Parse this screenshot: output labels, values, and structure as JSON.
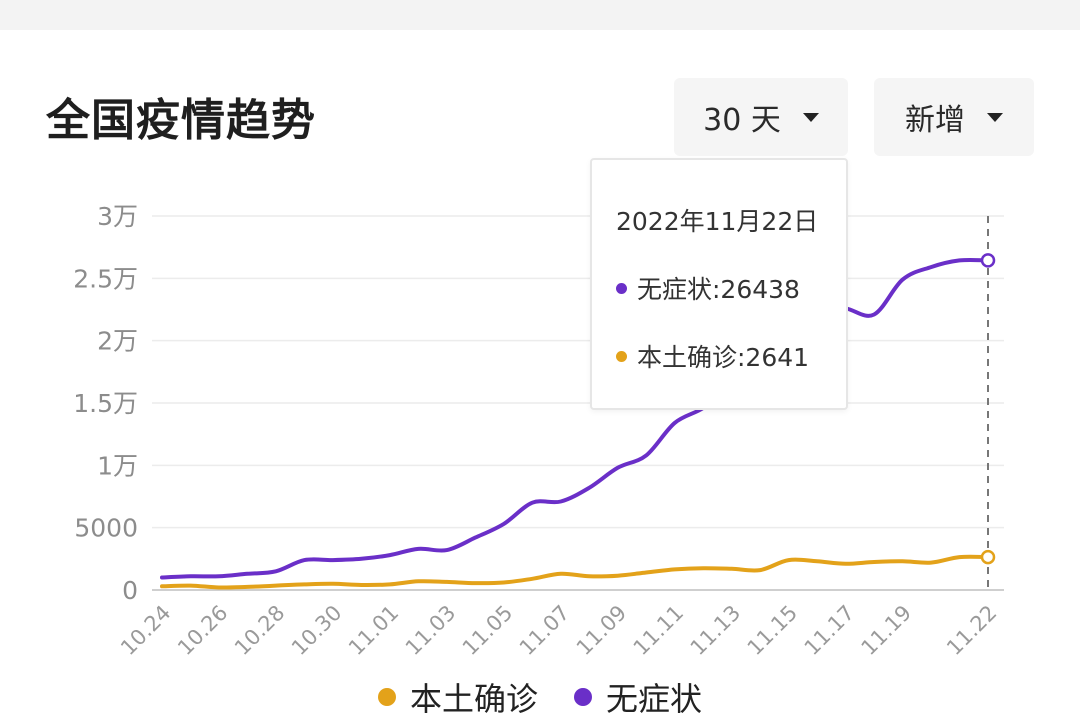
{
  "header": {
    "title": "全国疫情趋势",
    "range_label": "30 天",
    "type_label": "新增"
  },
  "tooltip": {
    "date": "2022年11月22日",
    "rows": [
      {
        "label": "无症状:26438",
        "color": "#6a2fc8"
      },
      {
        "label": "本土确诊:2641",
        "color": "#e3a21a"
      }
    ]
  },
  "legend": [
    {
      "label": "本土确诊",
      "color": "#e3a21a"
    },
    {
      "label": "无症状",
      "color": "#6a2fc8"
    }
  ],
  "chart_data": {
    "type": "line",
    "x": [
      "10.24",
      "10.25",
      "10.26",
      "10.27",
      "10.28",
      "10.29",
      "10.30",
      "10.31",
      "11.01",
      "11.02",
      "11.03",
      "11.04",
      "11.05",
      "11.06",
      "11.07",
      "11.08",
      "11.09",
      "11.10",
      "11.11",
      "11.12",
      "11.13",
      "11.14",
      "11.15",
      "11.16",
      "11.17",
      "11.18",
      "11.19",
      "11.20",
      "11.21",
      "11.22"
    ],
    "x_tick_labels": [
      "10.24",
      "10.26",
      "10.28",
      "10.30",
      "11.01",
      "11.03",
      "11.05",
      "11.07",
      "11.09",
      "11.11",
      "11.13",
      "11.15",
      "11.17",
      "11.19",
      "11.22"
    ],
    "series": [
      {
        "name": "无症状",
        "color": "#6a2fc8",
        "values": [
          1000,
          1100,
          1100,
          1300,
          1500,
          2400,
          2400,
          2500,
          2800,
          3300,
          3200,
          4200,
          5300,
          7000,
          7100,
          8200,
          9800,
          10800,
          13400,
          14600,
          16400,
          18300,
          20400,
          22900,
          22600,
          22100,
          24900,
          25900,
          26438,
          26438
        ]
      },
      {
        "name": "本土确诊",
        "color": "#e3a21a",
        "values": [
          300,
          350,
          200,
          250,
          350,
          450,
          500,
          400,
          450,
          700,
          650,
          550,
          600,
          900,
          1300,
          1100,
          1150,
          1400,
          1650,
          1750,
          1700,
          1600,
          2400,
          2300,
          2100,
          2250,
          2300,
          2200,
          2641,
          2641
        ]
      }
    ],
    "y_ticks": [
      "0",
      "5000",
      "1万",
      "1.5万",
      "2万",
      "2.5万",
      "3万"
    ],
    "ylim": [
      0,
      30000
    ],
    "grid": true,
    "legend_position": "bottom-center"
  }
}
